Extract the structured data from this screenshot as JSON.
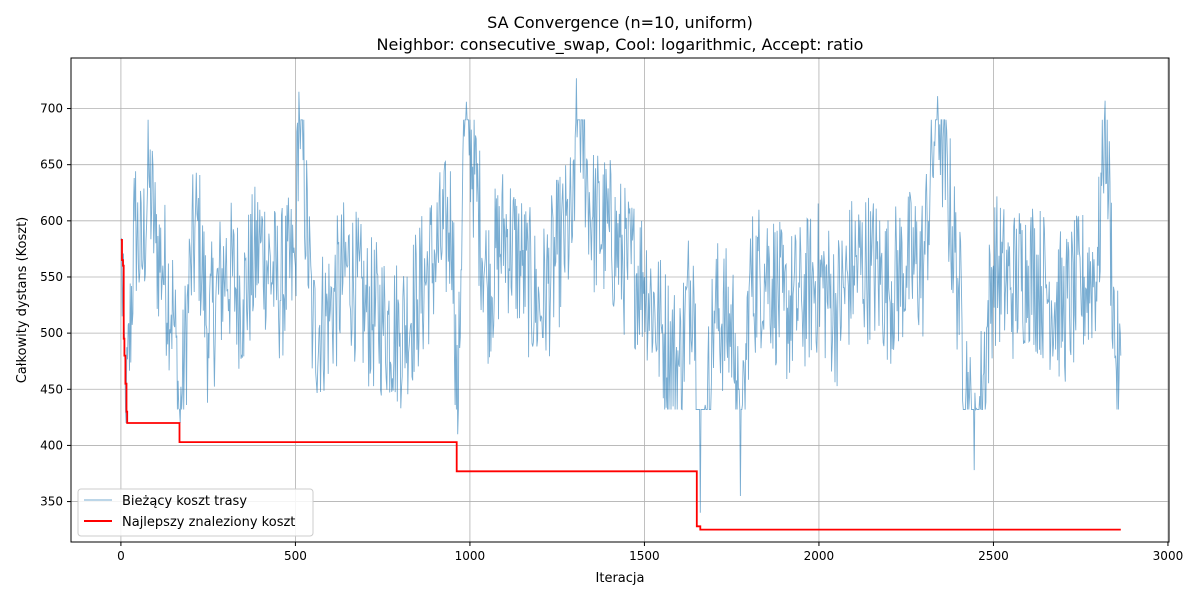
{
  "chart_data": {
    "type": "line",
    "title": "SA Convergence (n=10, uniform)",
    "subtitle": "Neighbor: consecutive_swap, Cool: logarithmic, Accept: ratio",
    "xlabel": "Iteracja",
    "ylabel": "Całkowity dystans (Koszt)",
    "xlim": [
      -143,
      3003
    ],
    "ylim": [
      314,
      745
    ],
    "xticks": [
      0,
      500,
      1000,
      1500,
      2000,
      2500,
      3000
    ],
    "yticks": [
      350,
      400,
      450,
      500,
      550,
      600,
      650,
      700
    ],
    "grid": true,
    "legend_position": "lower-left",
    "series": [
      {
        "name": "Bieżący koszt trasy",
        "color": "#1f77b4",
        "style": "thin-noisy-line",
        "points": [
          [
            0,
            583
          ],
          [
            15,
            420
          ],
          [
            40,
            600
          ],
          [
            60,
            560
          ],
          [
            80,
            640
          ],
          [
            100,
            580
          ],
          [
            120,
            560
          ],
          [
            150,
            520
          ],
          [
            170,
            420
          ],
          [
            200,
            560
          ],
          [
            220,
            600
          ],
          [
            250,
            500
          ],
          [
            300,
            560
          ],
          [
            350,
            530
          ],
          [
            400,
            580
          ],
          [
            450,
            540
          ],
          [
            500,
            560
          ],
          [
            510,
            715
          ],
          [
            550,
            500
          ],
          [
            600,
            520
          ],
          [
            650,
            560
          ],
          [
            700,
            520
          ],
          [
            750,
            510
          ],
          [
            800,
            500
          ],
          [
            850,
            530
          ],
          [
            900,
            570
          ],
          [
            950,
            600
          ],
          [
            965,
            410
          ],
          [
            980,
            660
          ],
          [
            990,
            706
          ],
          [
            1050,
            540
          ],
          [
            1100,
            590
          ],
          [
            1150,
            560
          ],
          [
            1200,
            520
          ],
          [
            1250,
            570
          ],
          [
            1300,
            600
          ],
          [
            1305,
            727
          ],
          [
            1350,
            600
          ],
          [
            1400,
            590
          ],
          [
            1450,
            560
          ],
          [
            1500,
            550
          ],
          [
            1550,
            500
          ],
          [
            1600,
            470
          ],
          [
            1640,
            560
          ],
          [
            1660,
            340
          ],
          [
            1700,
            520
          ],
          [
            1760,
            500
          ],
          [
            1775,
            355
          ],
          [
            1800,
            540
          ],
          [
            1850,
            560
          ],
          [
            1900,
            520
          ],
          [
            1950,
            530
          ],
          [
            2000,
            550
          ],
          [
            2050,
            520
          ],
          [
            2100,
            560
          ],
          [
            2150,
            560
          ],
          [
            2200,
            540
          ],
          [
            2250,
            560
          ],
          [
            2300,
            560
          ],
          [
            2340,
            711
          ],
          [
            2400,
            540
          ],
          [
            2445,
            378
          ],
          [
            2500,
            560
          ],
          [
            2550,
            540
          ],
          [
            2600,
            560
          ],
          [
            2650,
            540
          ],
          [
            2700,
            520
          ],
          [
            2750,
            540
          ],
          [
            2800,
            560
          ],
          [
            2820,
            707
          ],
          [
            2850,
            480
          ],
          [
            2860,
            460
          ],
          [
            2865,
            480
          ]
        ]
      },
      {
        "name": "Najlepszy znaleziony koszt",
        "color": "#ff0000",
        "style": "step",
        "points": [
          [
            0,
            583
          ],
          [
            3,
            565
          ],
          [
            6,
            560
          ],
          [
            8,
            495
          ],
          [
            10,
            480
          ],
          [
            13,
            455
          ],
          [
            16,
            430
          ],
          [
            18,
            420
          ],
          [
            165,
            420
          ],
          [
            168,
            403
          ],
          [
            960,
            403
          ],
          [
            962,
            377
          ],
          [
            1648,
            377
          ],
          [
            1650,
            328
          ],
          [
            1658,
            328
          ],
          [
            1660,
            325
          ],
          [
            2865,
            325
          ]
        ]
      }
    ]
  }
}
